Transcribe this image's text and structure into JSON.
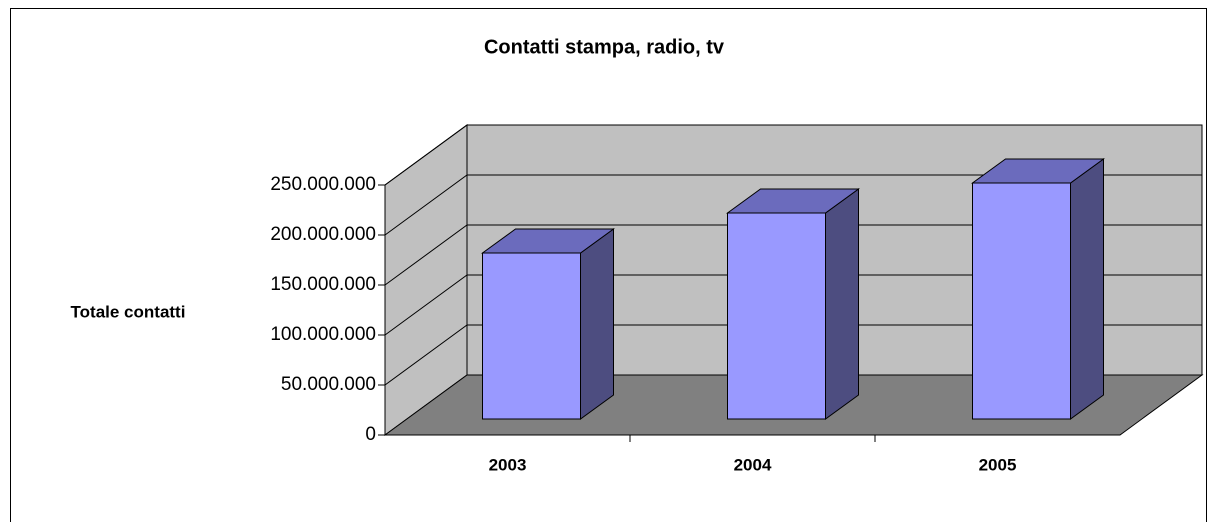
{
  "chart_data": {
    "type": "bar3d",
    "title": "Contatti stampa, radio, tv",
    "y_label": "Totale contatti",
    "categories": [
      "2003",
      "2004",
      "2005"
    ],
    "values": [
      166000000,
      206000000,
      236000000
    ],
    "color": "#9999ff",
    "ylim": [
      0,
      250000000
    ],
    "yticks": [
      0,
      {
        "value": 50000000,
        "label": "50.000.000"
      },
      {
        "value": 100000000,
        "label": "100.000.000"
      },
      {
        "value": 150000000,
        "label": "150.000.000"
      },
      {
        "value": 200000000,
        "label": "200.000.000"
      },
      {
        "value": 250000000,
        "label": "250.000.000"
      }
    ],
    "grid": true
  }
}
